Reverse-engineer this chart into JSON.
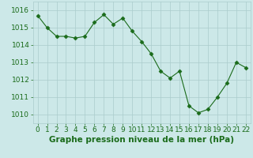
{
  "x": [
    0,
    1,
    2,
    3,
    4,
    5,
    6,
    7,
    8,
    9,
    10,
    11,
    12,
    13,
    14,
    15,
    16,
    17,
    18,
    19,
    20,
    21,
    22
  ],
  "y": [
    1015.7,
    1015.0,
    1014.5,
    1014.5,
    1014.4,
    1014.5,
    1015.3,
    1015.75,
    1015.2,
    1015.55,
    1014.8,
    1014.2,
    1013.5,
    1012.5,
    1012.1,
    1012.5,
    1010.5,
    1010.1,
    1010.3,
    1011.0,
    1011.8,
    1013.0,
    1012.7
  ],
  "line_color": "#1a6b1a",
  "marker": "D",
  "marker_size": 2.5,
  "bg_color": "#cce8e8",
  "grid_color": "#aacccc",
  "xlabel": "Graphe pression niveau de la mer (hPa)",
  "xlabel_color": "#1a6b1a",
  "xlabel_fontsize": 7.5,
  "tick_color": "#1a6b1a",
  "tick_fontsize": 6.5,
  "ylim": [
    1009.5,
    1016.5
  ],
  "yticks": [
    1010,
    1011,
    1012,
    1013,
    1014,
    1015,
    1016
  ],
  "xticks": [
    0,
    1,
    2,
    3,
    4,
    5,
    6,
    7,
    8,
    9,
    10,
    11,
    12,
    13,
    14,
    15,
    16,
    17,
    18,
    19,
    20,
    21,
    22
  ],
  "xlim": [
    -0.5,
    22.5
  ]
}
